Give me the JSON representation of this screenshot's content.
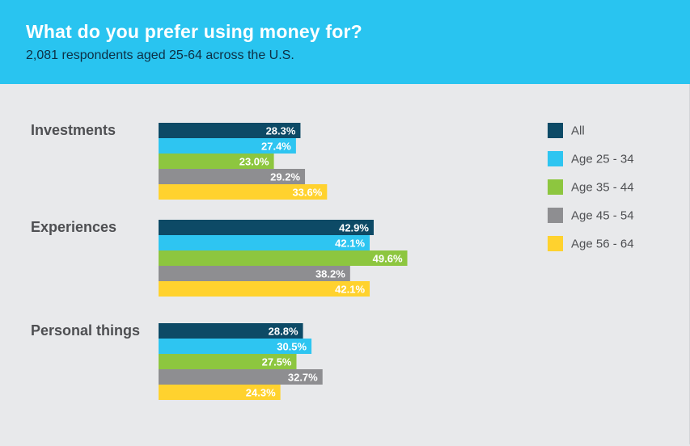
{
  "header": {
    "title": "What do you prefer using money for?",
    "subtitle": "2,081 respondents aged 25-64 across the U.S."
  },
  "chart_data": {
    "type": "bar",
    "orientation": "horizontal",
    "title": "What do you prefer using money for?",
    "subtitle": "2,081 respondents aged 25-64 across the U.S.",
    "categories": [
      "Investments",
      "Experiences",
      "Personal things"
    ],
    "series": [
      {
        "name": "All",
        "color": "#0d4a66",
        "values": [
          28.3,
          42.9,
          28.8
        ],
        "labels": [
          "28.3%",
          "42.9%",
          "28.8%"
        ]
      },
      {
        "name": "Age 25 - 34",
        "color": "#2ec5f1",
        "values": [
          27.4,
          42.1,
          30.5
        ],
        "labels": [
          "27.4%",
          "42.1%",
          "30.5%"
        ]
      },
      {
        "name": "Age 35 - 44",
        "color": "#8dc63f",
        "values": [
          23.0,
          49.6,
          27.5
        ],
        "labels": [
          "23.0%",
          "49.6%",
          "27.5%"
        ]
      },
      {
        "name": "Age 45 - 54",
        "color": "#8e8e91",
        "values": [
          29.2,
          38.2,
          32.7
        ],
        "labels": [
          "29.2%",
          "38.2%",
          "32.7%"
        ]
      },
      {
        "name": "Age 56 - 64",
        "color": "#ffd22e",
        "values": [
          33.6,
          42.1,
          24.3
        ],
        "labels": [
          "33.6%",
          "42.1%",
          "24.3%"
        ]
      }
    ],
    "xlim": [
      0,
      50
    ],
    "grid": false,
    "legend_position": "right"
  }
}
